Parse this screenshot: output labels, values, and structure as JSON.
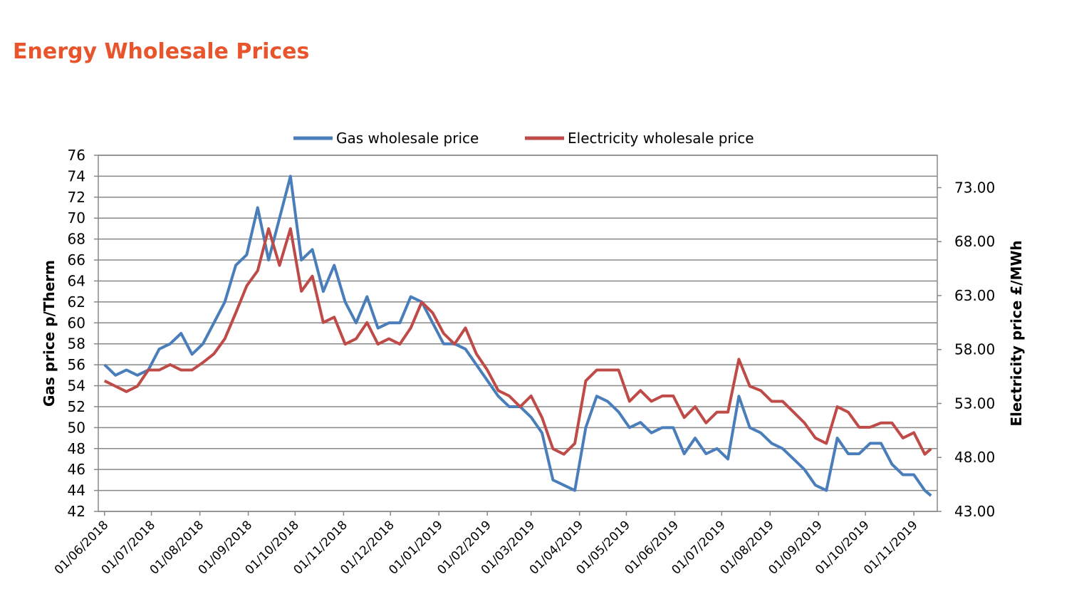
{
  "title": "Energy Wholesale Prices",
  "chart_data": {
    "type": "line",
    "ylabel": "Gas price p/Therm",
    "y2label": "Electricity price £/MWh",
    "x": [
      "01/06/2018",
      "08/06/2018",
      "15/06/2018",
      "22/06/2018",
      "29/06/2018",
      "06/07/2018",
      "13/07/2018",
      "20/07/2018",
      "27/07/2018",
      "03/08/2018",
      "10/08/2018",
      "17/08/2018",
      "24/08/2018",
      "31/08/2018",
      "07/09/2018",
      "14/09/2018",
      "21/09/2018",
      "28/09/2018",
      "05/10/2018",
      "12/10/2018",
      "19/10/2018",
      "26/10/2018",
      "02/11/2018",
      "09/11/2018",
      "16/11/2018",
      "23/11/2018",
      "30/11/2018",
      "07/12/2018",
      "14/12/2018",
      "21/12/2018",
      "28/12/2018",
      "04/01/2019",
      "11/01/2019",
      "18/01/2019",
      "25/01/2019",
      "01/02/2019",
      "08/02/2019",
      "15/02/2019",
      "22/02/2019",
      "01/03/2019",
      "08/03/2019",
      "15/03/2019",
      "22/03/2019",
      "29/03/2019",
      "05/04/2019",
      "12/04/2019",
      "19/04/2019",
      "26/04/2019",
      "03/05/2019",
      "10/05/2019",
      "17/05/2019",
      "24/05/2019",
      "31/05/2019",
      "07/06/2019",
      "14/06/2019",
      "21/06/2019",
      "28/06/2019",
      "05/07/2019",
      "12/07/2019",
      "19/07/2019",
      "26/07/2019",
      "02/08/2019",
      "09/08/2019",
      "16/08/2019",
      "23/08/2019",
      "30/08/2019",
      "06/09/2019",
      "13/09/2019",
      "20/09/2019",
      "27/09/2019",
      "04/10/2019",
      "11/10/2019",
      "18/10/2019",
      "25/10/2019",
      "01/11/2019",
      "08/11/2019",
      "12/11/2019"
    ],
    "series": [
      {
        "name": "Gas wholesale price",
        "color": "#4a7ebb",
        "values": [
          56,
          55,
          55.5,
          55,
          55.5,
          57.5,
          58,
          59,
          57,
          58,
          60,
          62,
          65.5,
          66.5,
          71,
          66,
          70,
          74,
          66,
          67,
          63,
          65.5,
          62,
          60,
          62.5,
          59.5,
          60,
          60,
          62.5,
          62,
          60,
          58,
          58,
          57.5,
          56,
          54.5,
          53,
          52,
          52,
          51,
          49.5,
          45,
          44.5,
          44,
          50,
          53,
          52.5,
          51.5,
          50,
          50.5,
          49.5,
          50,
          50,
          47.5,
          49,
          47.5,
          48,
          47,
          53,
          50,
          49.5,
          48.5,
          48,
          47,
          46,
          44.5,
          44,
          49,
          47.5,
          47.5,
          48.5,
          48.5,
          46.5,
          45.5,
          45.5,
          44,
          43.5
        ]
      },
      {
        "name": "Electricity wholesale price",
        "color": "#be4b48",
        "axis": "y2",
        "values": [
          55.1,
          54.6,
          54.1,
          54.6,
          56.1,
          56.1,
          56.6,
          56.1,
          56.1,
          56.8,
          57.6,
          59,
          61.4,
          63.9,
          65.3,
          69.2,
          65.8,
          69.2,
          63.4,
          64.8,
          60.5,
          61,
          58.5,
          59,
          60.5,
          58.5,
          59,
          58.5,
          60,
          62.4,
          61.4,
          59.5,
          58.5,
          60,
          57.6,
          56.1,
          54.2,
          53.7,
          52.7,
          53.7,
          51.7,
          48.8,
          48.3,
          49.3,
          55.1,
          56.1,
          56.1,
          56.1,
          53.2,
          54.2,
          53.2,
          53.7,
          53.7,
          51.7,
          52.7,
          51.2,
          52.2,
          52.2,
          57.1,
          54.6,
          54.2,
          53.2,
          53.2,
          52.2,
          51.2,
          49.8,
          49.3,
          52.7,
          52.2,
          50.8,
          50.8,
          51.2,
          51.2,
          49.8,
          50.3,
          48.3,
          48.8
        ]
      }
    ],
    "xlim": [
      "28/05/2018",
      "16/11/2019"
    ],
    "xticks": [
      "01/06/2018",
      "01/07/2018",
      "01/08/2018",
      "01/09/2018",
      "01/10/2018",
      "01/11/2018",
      "01/12/2018",
      "01/01/2019",
      "01/02/2019",
      "01/03/2019",
      "01/04/2019",
      "01/05/2019",
      "01/06/2019",
      "01/07/2019",
      "01/08/2019",
      "01/09/2019",
      "01/10/2019",
      "01/11/2019"
    ],
    "ylim": [
      42,
      76
    ],
    "yticks": [
      42,
      44,
      46,
      48,
      50,
      52,
      54,
      56,
      58,
      60,
      62,
      64,
      66,
      68,
      70,
      72,
      74,
      76
    ],
    "y2lim": [
      43,
      76
    ],
    "y2ticks": [
      {
        "value": 43,
        "label": "43.00"
      },
      {
        "value": 48,
        "label": "48.00"
      },
      {
        "value": 53,
        "label": "53.00"
      },
      {
        "value": 58,
        "label": "58.00"
      },
      {
        "value": 63,
        "label": "63.00"
      },
      {
        "value": 68,
        "label": "68.00"
      },
      {
        "value": 73,
        "label": "73.00"
      }
    ],
    "grid": true,
    "legend": "top"
  }
}
